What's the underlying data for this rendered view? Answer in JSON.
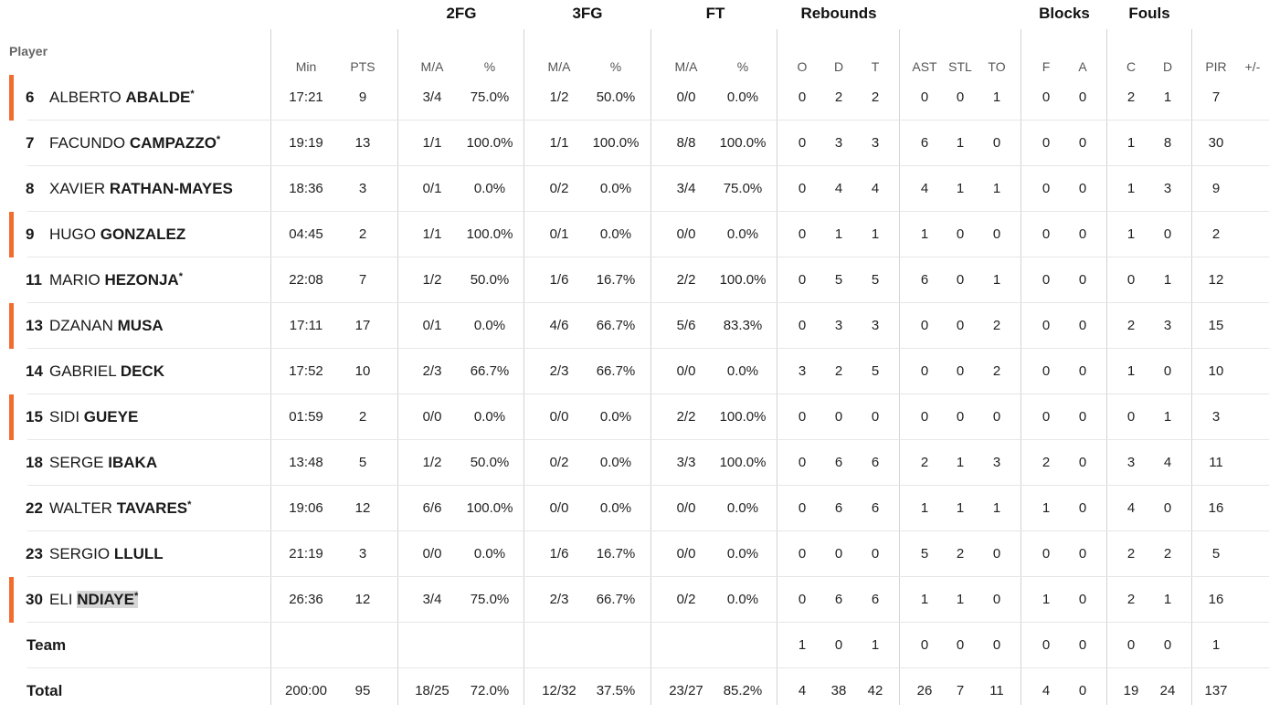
{
  "groups": {
    "fg2": "2FG",
    "fg3": "3FG",
    "ft": "FT",
    "reb": "Rebounds",
    "blk": "Blocks",
    "fouls": "Fouls"
  },
  "columns": {
    "player": "Player",
    "min": "Min",
    "pts": "PTS",
    "ma": "M/A",
    "pct": "%",
    "o": "O",
    "d": "D",
    "t": "T",
    "ast": "AST",
    "stl": "STL",
    "to": "TO",
    "f": "F",
    "a": "A",
    "c": "C",
    "fd": "D",
    "pir": "PIR",
    "pm": "+/-"
  },
  "players": [
    {
      "num": "6",
      "first": "ALBERTO",
      "last": "ABALDE",
      "star": "*",
      "marked": true,
      "min": "17:21",
      "pts": "9",
      "fg2": "3/4",
      "fg2p": "75.0%",
      "fg3": "1/2",
      "fg3p": "50.0%",
      "ft": "0/0",
      "ftp": "0.0%",
      "o": "0",
      "d": "2",
      "t": "2",
      "ast": "0",
      "stl": "0",
      "to": "1",
      "bf": "0",
      "ba": "0",
      "fc": "2",
      "fd": "1",
      "pir": "7"
    },
    {
      "num": "7",
      "first": "FACUNDO",
      "last": "CAMPAZZO",
      "star": "*",
      "marked": false,
      "min": "19:19",
      "pts": "13",
      "fg2": "1/1",
      "fg2p": "100.0%",
      "fg3": "1/1",
      "fg3p": "100.0%",
      "ft": "8/8",
      "ftp": "100.0%",
      "o": "0",
      "d": "3",
      "t": "3",
      "ast": "6",
      "stl": "1",
      "to": "0",
      "bf": "0",
      "ba": "0",
      "fc": "1",
      "fd": "8",
      "pir": "30"
    },
    {
      "num": "8",
      "first": "XAVIER",
      "last": "RATHAN-MAYES",
      "star": "",
      "marked": false,
      "min": "18:36",
      "pts": "3",
      "fg2": "0/1",
      "fg2p": "0.0%",
      "fg3": "0/2",
      "fg3p": "0.0%",
      "ft": "3/4",
      "ftp": "75.0%",
      "o": "0",
      "d": "4",
      "t": "4",
      "ast": "4",
      "stl": "1",
      "to": "1",
      "bf": "0",
      "ba": "0",
      "fc": "1",
      "fd": "3",
      "pir": "9"
    },
    {
      "num": "9",
      "first": "HUGO",
      "last": "GONZALEZ",
      "star": "",
      "marked": true,
      "min": "04:45",
      "pts": "2",
      "fg2": "1/1",
      "fg2p": "100.0%",
      "fg3": "0/1",
      "fg3p": "0.0%",
      "ft": "0/0",
      "ftp": "0.0%",
      "o": "0",
      "d": "1",
      "t": "1",
      "ast": "1",
      "stl": "0",
      "to": "0",
      "bf": "0",
      "ba": "0",
      "fc": "1",
      "fd": "0",
      "pir": "2"
    },
    {
      "num": "11",
      "first": "MARIO",
      "last": "HEZONJA",
      "star": "*",
      "marked": false,
      "min": "22:08",
      "pts": "7",
      "fg2": "1/2",
      "fg2p": "50.0%",
      "fg3": "1/6",
      "fg3p": "16.7%",
      "ft": "2/2",
      "ftp": "100.0%",
      "o": "0",
      "d": "5",
      "t": "5",
      "ast": "6",
      "stl": "0",
      "to": "1",
      "bf": "0",
      "ba": "0",
      "fc": "0",
      "fd": "1",
      "pir": "12"
    },
    {
      "num": "13",
      "first": "DZANAN",
      "last": "MUSA",
      "star": "",
      "marked": true,
      "min": "17:11",
      "pts": "17",
      "fg2": "0/1",
      "fg2p": "0.0%",
      "fg3": "4/6",
      "fg3p": "66.7%",
      "ft": "5/6",
      "ftp": "83.3%",
      "o": "0",
      "d": "3",
      "t": "3",
      "ast": "0",
      "stl": "0",
      "to": "2",
      "bf": "0",
      "ba": "0",
      "fc": "2",
      "fd": "3",
      "pir": "15"
    },
    {
      "num": "14",
      "first": "GABRIEL",
      "last": "DECK",
      "star": "",
      "marked": false,
      "min": "17:52",
      "pts": "10",
      "fg2": "2/3",
      "fg2p": "66.7%",
      "fg3": "2/3",
      "fg3p": "66.7%",
      "ft": "0/0",
      "ftp": "0.0%",
      "o": "3",
      "d": "2",
      "t": "5",
      "ast": "0",
      "stl": "0",
      "to": "2",
      "bf": "0",
      "ba": "0",
      "fc": "1",
      "fd": "0",
      "pir": "10"
    },
    {
      "num": "15",
      "first": "SIDI",
      "last": "GUEYE",
      "star": "",
      "marked": true,
      "min": "01:59",
      "pts": "2",
      "fg2": "0/0",
      "fg2p": "0.0%",
      "fg3": "0/0",
      "fg3p": "0.0%",
      "ft": "2/2",
      "ftp": "100.0%",
      "o": "0",
      "d": "0",
      "t": "0",
      "ast": "0",
      "stl": "0",
      "to": "0",
      "bf": "0",
      "ba": "0",
      "fc": "0",
      "fd": "1",
      "pir": "3"
    },
    {
      "num": "18",
      "first": "SERGE",
      "last": "IBAKA",
      "star": "",
      "marked": false,
      "min": "13:48",
      "pts": "5",
      "fg2": "1/2",
      "fg2p": "50.0%",
      "fg3": "0/2",
      "fg3p": "0.0%",
      "ft": "3/3",
      "ftp": "100.0%",
      "o": "0",
      "d": "6",
      "t": "6",
      "ast": "2",
      "stl": "1",
      "to": "3",
      "bf": "2",
      "ba": "0",
      "fc": "3",
      "fd": "4",
      "pir": "11"
    },
    {
      "num": "22",
      "first": "WALTER",
      "last": "TAVARES",
      "star": "*",
      "marked": false,
      "min": "19:06",
      "pts": "12",
      "fg2": "6/6",
      "fg2p": "100.0%",
      "fg3": "0/0",
      "fg3p": "0.0%",
      "ft": "0/0",
      "ftp": "0.0%",
      "o": "0",
      "d": "6",
      "t": "6",
      "ast": "1",
      "stl": "1",
      "to": "1",
      "bf": "1",
      "ba": "0",
      "fc": "4",
      "fd": "0",
      "pir": "16"
    },
    {
      "num": "23",
      "first": "SERGIO",
      "last": "LLULL",
      "star": "",
      "marked": false,
      "min": "21:19",
      "pts": "3",
      "fg2": "0/0",
      "fg2p": "0.0%",
      "fg3": "1/6",
      "fg3p": "16.7%",
      "ft": "0/0",
      "ftp": "0.0%",
      "o": "0",
      "d": "0",
      "t": "0",
      "ast": "5",
      "stl": "2",
      "to": "0",
      "bf": "0",
      "ba": "0",
      "fc": "2",
      "fd": "2",
      "pir": "5"
    },
    {
      "num": "30",
      "first": "ELI",
      "last": "NDIAYE",
      "star": "*",
      "marked": true,
      "highlight": true,
      "min": "26:36",
      "pts": "12",
      "fg2": "3/4",
      "fg2p": "75.0%",
      "fg3": "2/3",
      "fg3p": "66.7%",
      "ft": "0/2",
      "ftp": "0.0%",
      "o": "0",
      "d": "6",
      "t": "6",
      "ast": "1",
      "stl": "1",
      "to": "0",
      "bf": "1",
      "ba": "0",
      "fc": "2",
      "fd": "1",
      "pir": "16"
    }
  ],
  "team": {
    "label": "Team",
    "o": "1",
    "d": "0",
    "t": "1",
    "ast": "0",
    "stl": "0",
    "to": "0",
    "bf": "0",
    "ba": "0",
    "fc": "0",
    "fd": "0",
    "pir": "1"
  },
  "total": {
    "label": "Total",
    "min": "200:00",
    "pts": "95",
    "fg2": "18/25",
    "fg2p": "72.0%",
    "fg3": "12/32",
    "fg3p": "37.5%",
    "ft": "23/27",
    "ftp": "85.2%",
    "o": "4",
    "d": "38",
    "t": "42",
    "ast": "26",
    "stl": "7",
    "to": "11",
    "bf": "4",
    "ba": "0",
    "fc": "19",
    "fd": "24",
    "pir": "137"
  },
  "colors": {
    "marker": "#f26b2f",
    "highlight": "#d6d6d6",
    "divider": "#d3d3d3"
  }
}
